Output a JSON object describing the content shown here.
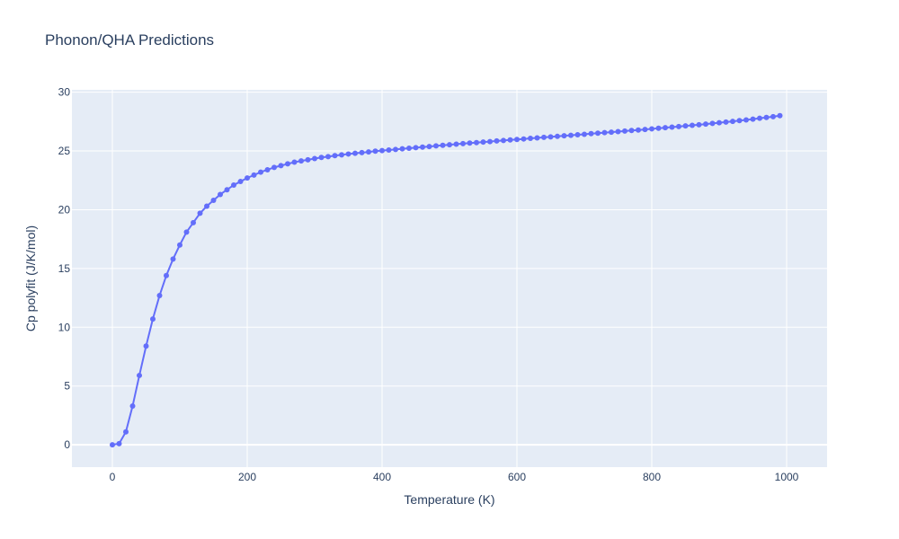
{
  "chart_data": {
    "type": "line",
    "title": "Phonon/QHA Predictions",
    "xlabel": "Temperature (K)",
    "ylabel": "Cp polyfit (J/K/mol)",
    "xlim": [
      -60,
      1060
    ],
    "ylim": [
      -1.9,
      30.2
    ],
    "x_ticks": [
      0,
      200,
      400,
      600,
      800,
      1000
    ],
    "y_ticks": [
      0,
      5,
      10,
      15,
      20,
      25,
      30
    ],
    "grid": true,
    "legend": "none",
    "colors": {
      "line": "#636efa",
      "plot_bg": "#e5ecf6",
      "grid": "#ffffff",
      "text": "#2a3f5f"
    },
    "series": [
      {
        "x": [
          0,
          10,
          20,
          30,
          40,
          50,
          60,
          70,
          80,
          90,
          100,
          110,
          120,
          130,
          140,
          150,
          160,
          170,
          180,
          190,
          200,
          210,
          220,
          230,
          240,
          250,
          260,
          270,
          280,
          290,
          300,
          310,
          320,
          330,
          340,
          350,
          360,
          370,
          380,
          390,
          400,
          410,
          420,
          430,
          440,
          450,
          460,
          470,
          480,
          490,
          500,
          510,
          520,
          530,
          540,
          550,
          560,
          570,
          580,
          590,
          600,
          610,
          620,
          630,
          640,
          650,
          660,
          670,
          680,
          690,
          700,
          710,
          720,
          730,
          740,
          750,
          760,
          770,
          780,
          790,
          800,
          810,
          820,
          830,
          840,
          850,
          860,
          870,
          880,
          890,
          900,
          910,
          920,
          930,
          940,
          950,
          960,
          970,
          980,
          990
        ],
        "values": [
          0,
          0.1,
          1.1,
          3.3,
          5.9,
          8.4,
          10.7,
          12.7,
          14.4,
          15.8,
          17.0,
          18.1,
          18.9,
          19.7,
          20.3,
          20.8,
          21.3,
          21.7,
          22.1,
          22.4,
          22.7,
          22.95,
          23.2,
          23.4,
          23.6,
          23.75,
          23.9,
          24.05,
          24.15,
          24.25,
          24.35,
          24.45,
          24.52,
          24.6,
          24.67,
          24.74,
          24.8,
          24.86,
          24.92,
          24.98,
          25.03,
          25.08,
          25.13,
          25.18,
          25.23,
          25.28,
          25.33,
          25.38,
          25.43,
          25.48,
          25.53,
          25.58,
          25.62,
          25.67,
          25.71,
          25.76,
          25.8,
          25.85,
          25.89,
          25.94,
          25.98,
          26.02,
          26.07,
          26.11,
          26.16,
          26.2,
          26.24,
          26.29,
          26.33,
          26.38,
          26.42,
          26.47,
          26.51,
          26.56,
          26.6,
          26.65,
          26.69,
          26.74,
          26.78,
          26.83,
          26.88,
          26.93,
          26.98,
          27.03,
          27.08,
          27.13,
          27.18,
          27.23,
          27.29,
          27.34,
          27.4,
          27.46,
          27.52,
          27.58,
          27.64,
          27.71,
          27.78,
          27.85,
          27.92,
          28.0
        ]
      }
    ]
  }
}
